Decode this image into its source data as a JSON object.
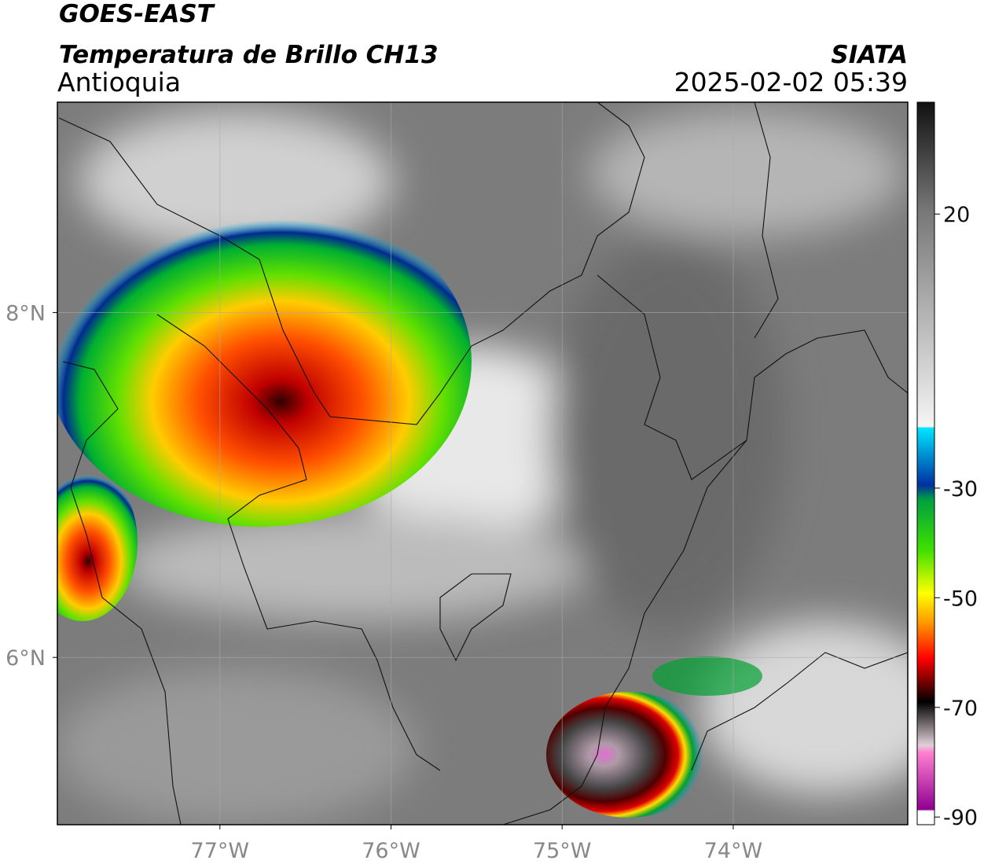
{
  "header": {
    "title": "GOES-EAST",
    "subtitle": "Temperatura de Brillo CH13",
    "region": "Antioquia",
    "source": "SIATA",
    "timestamp": "2025-02-02 05:39"
  },
  "map": {
    "xlim": [
      -77.95,
      -72.98
    ],
    "ylim": [
      5.03,
      9.22
    ],
    "xticks": [
      {
        "value": -77,
        "label": "77°W"
      },
      {
        "value": -76,
        "label": "76°W"
      },
      {
        "value": -75,
        "label": "75°W"
      },
      {
        "value": -74,
        "label": "74°W"
      }
    ],
    "yticks": [
      {
        "value": 6,
        "label": "6°N"
      },
      {
        "value": 8,
        "label": "8°N"
      }
    ],
    "grid": true
  },
  "colorbar": {
    "lim": [
      -91.4,
      40.4
    ],
    "ticks": [
      20,
      -30,
      -50,
      -70,
      -90
    ]
  }
}
